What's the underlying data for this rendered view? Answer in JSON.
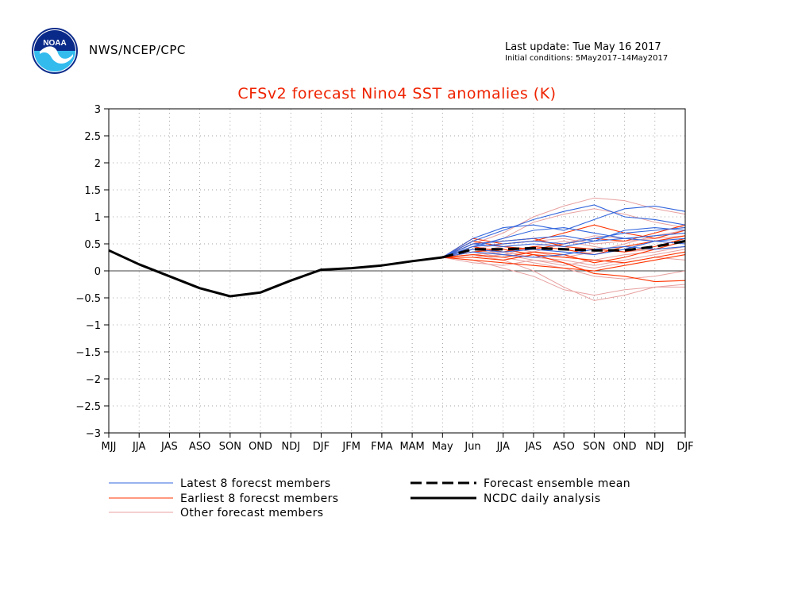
{
  "header": {
    "agency": "NWS/NCEP/CPC",
    "logo_text": "NOAA",
    "last_update": "Last update: Tue May 16 2017",
    "initial_conditions": "Initial conditions: 5May2017–14May2017"
  },
  "colors": {
    "title": "#ee2200",
    "latest": "#3366dd",
    "earliest": "#ff3300",
    "other": "#e8a0a0",
    "analysis": "#000000",
    "grid": "#888888"
  },
  "chart_data": {
    "type": "line",
    "title": "CFSv2 forecast Nino4 SST anomalies (K)",
    "categories": [
      "MJJ",
      "JJA",
      "JAS",
      "ASO",
      "SON",
      "OND",
      "NDJ",
      "DJF",
      "JFM",
      "FMA",
      "MAM",
      "May",
      "Jun",
      "JJA",
      "JAS",
      "ASO",
      "SON",
      "OND",
      "NDJ",
      "DJF"
    ],
    "ylim": [
      -3,
      3
    ],
    "yticks": [
      3,
      2.5,
      2,
      1.5,
      1,
      0.5,
      0,
      -0.5,
      -1,
      -1.5,
      -2,
      -2.5,
      -3
    ],
    "ytick_labels": [
      "3",
      "2.5",
      "2",
      "1.5",
      "1",
      "0.5",
      "0",
      "−0.5",
      "−1",
      "−1.5",
      "−2",
      "−2.5",
      "−3"
    ],
    "grid": true,
    "forecast_start_index": 11,
    "analysis": {
      "name": "NCDC daily analysis",
      "values": [
        0.38,
        0.12,
        -0.1,
        -0.32,
        -0.47,
        -0.4,
        -0.18,
        0.02,
        0.05,
        0.1,
        0.18,
        0.25
      ]
    },
    "ensemble_mean": {
      "name": "Forecast ensemble mean",
      "values": [
        0.25,
        0.4,
        0.4,
        0.42,
        0.4,
        0.38,
        0.38,
        0.45,
        0.55
      ]
    },
    "latest_members": [
      [
        0.25,
        0.55,
        0.75,
        0.95,
        1.1,
        1.22,
        1.0,
        0.95,
        0.85
      ],
      [
        0.25,
        0.6,
        0.8,
        0.85,
        0.75,
        0.95,
        1.15,
        1.2,
        1.1
      ],
      [
        0.25,
        0.45,
        0.5,
        0.55,
        0.5,
        0.6,
        0.7,
        0.75,
        0.8
      ],
      [
        0.25,
        0.5,
        0.45,
        0.5,
        0.45,
        0.55,
        0.6,
        0.65,
        0.7
      ],
      [
        0.25,
        0.4,
        0.35,
        0.4,
        0.35,
        0.3,
        0.4,
        0.55,
        0.6
      ],
      [
        0.25,
        0.45,
        0.6,
        0.75,
        0.8,
        0.7,
        0.6,
        0.55,
        0.5
      ],
      [
        0.25,
        0.35,
        0.3,
        0.25,
        0.3,
        0.4,
        0.45,
        0.4,
        0.45
      ],
      [
        0.25,
        0.5,
        0.55,
        0.6,
        0.65,
        0.55,
        0.75,
        0.8,
        0.75
      ]
    ],
    "earliest_members": [
      [
        0.25,
        0.6,
        0.5,
        0.55,
        0.7,
        0.85,
        0.7,
        0.6,
        0.75
      ],
      [
        0.25,
        0.3,
        0.25,
        0.35,
        0.3,
        0.15,
        0.25,
        0.4,
        0.55
      ],
      [
        0.25,
        0.55,
        0.45,
        0.4,
        0.5,
        0.6,
        0.55,
        0.7,
        0.85
      ],
      [
        0.25,
        0.2,
        0.15,
        0.1,
        0.05,
        0.0,
        0.1,
        0.2,
        0.3
      ],
      [
        0.25,
        0.5,
        0.55,
        0.6,
        0.45,
        0.4,
        0.35,
        0.45,
        0.6
      ],
      [
        0.25,
        0.35,
        0.4,
        0.3,
        0.25,
        0.2,
        0.15,
        0.25,
        0.35
      ],
      [
        0.25,
        0.45,
        0.35,
        0.45,
        0.4,
        0.3,
        0.45,
        0.55,
        0.65
      ],
      [
        0.25,
        0.25,
        0.2,
        0.3,
        0.15,
        -0.05,
        -0.1,
        -0.2,
        -0.18
      ]
    ],
    "other_members": [
      [
        0.25,
        0.5,
        0.7,
        1.0,
        1.2,
        1.35,
        1.3,
        1.15,
        1.05
      ],
      [
        0.25,
        0.45,
        0.6,
        0.9,
        1.05,
        1.15,
        1.05,
        0.9,
        0.8
      ],
      [
        0.25,
        0.3,
        0.2,
        0.0,
        -0.3,
        -0.55,
        -0.45,
        -0.3,
        -0.25
      ],
      [
        0.25,
        0.2,
        0.05,
        -0.1,
        -0.35,
        -0.45,
        -0.35,
        -0.3,
        -0.3
      ],
      [
        0.25,
        0.35,
        0.25,
        0.15,
        0.05,
        -0.1,
        -0.15,
        -0.1,
        0.0
      ],
      [
        0.25,
        0.4,
        0.5,
        0.55,
        0.6,
        0.5,
        0.55,
        0.6,
        0.65
      ],
      [
        0.25,
        0.3,
        0.35,
        0.25,
        0.2,
        0.1,
        0.2,
        0.3,
        0.4
      ],
      [
        0.25,
        0.45,
        0.3,
        0.35,
        0.5,
        0.65,
        0.6,
        0.55,
        0.5
      ],
      [
        0.25,
        0.25,
        0.3,
        0.45,
        0.55,
        0.45,
        0.35,
        0.4,
        0.45
      ],
      [
        0.25,
        0.35,
        0.45,
        0.35,
        0.25,
        0.35,
        0.5,
        0.65,
        0.75
      ],
      [
        0.25,
        0.15,
        0.1,
        0.2,
        0.15,
        0.05,
        0.15,
        0.25,
        0.2
      ],
      [
        0.25,
        0.4,
        0.3,
        0.2,
        0.1,
        0.2,
        0.3,
        0.35,
        0.45
      ]
    ],
    "legend": [
      {
        "label": "Latest 8 forecst members",
        "style": "latest"
      },
      {
        "label": "Earliest 8 forecst members",
        "style": "earliest"
      },
      {
        "label": "Other forecast members",
        "style": "other"
      },
      {
        "label": "Forecast ensemble mean",
        "style": "mean"
      },
      {
        "label": "NCDC daily analysis",
        "style": "analysis"
      }
    ]
  }
}
